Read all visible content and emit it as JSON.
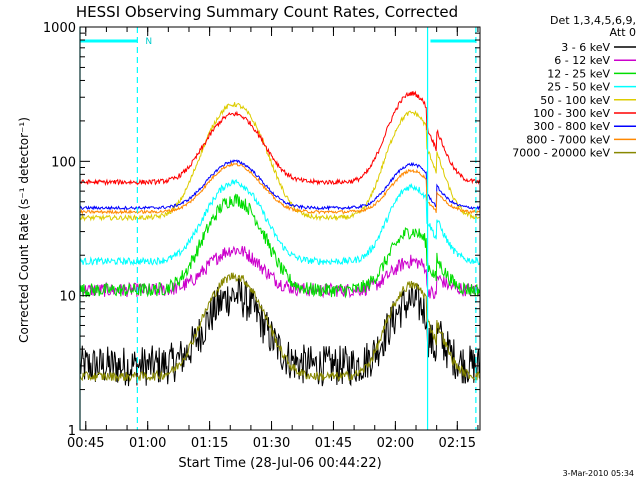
{
  "chart_data": {
    "type": "line",
    "title": "HESSI Observing Summary Count Rates, Corrected",
    "xlabel": "Start Time (28-Jul-06 00:44:22)",
    "ylabel": "Corrected Count Rate (s⁻¹ detector⁻¹)",
    "y_scale": "log",
    "ylim": [
      1,
      1000
    ],
    "xlim_minutes_after_0044": [
      -0.4,
      96.5
    ],
    "x_tick_labels": [
      "00:45",
      "01:00",
      "01:15",
      "01:30",
      "01:45",
      "02:00",
      "02:15"
    ],
    "y_tick_labels": [
      "1",
      "10",
      "100",
      "1000"
    ],
    "legend_header": [
      "Det 1,3,4,5,6,9,",
      "Att 0"
    ],
    "legend_position": "right-outside",
    "footer_date": "3-Mar-2010 05:34",
    "night_marker_label": "N",
    "solid_vertical_lines_minutes": [
      -0.4,
      83.8
    ],
    "dashed_vertical_lines_minutes": [
      13.5,
      95.5
    ],
    "series": [
      {
        "name": "3 - 6 keV",
        "color": "#000000",
        "base": 3.0,
        "peak1": 10,
        "peak2": 9,
        "noise": 0.35
      },
      {
        "name": "6 - 12 keV",
        "color": "#cc00cc",
        "base": 11,
        "peak1": 22,
        "peak2": 18,
        "noise": 0.12
      },
      {
        "name": "12 - 25 keV",
        "color": "#00dd00",
        "base": 11,
        "peak1": 52,
        "peak2": 30,
        "noise": 0.12
      },
      {
        "name": "25 - 50 keV",
        "color": "#00ffff",
        "base": 18,
        "peak1": 70,
        "peak2": 65,
        "noise": 0.06
      },
      {
        "name": "50 - 100 keV",
        "color": "#ddcc00",
        "base": 38,
        "peak1": 265,
        "peak2": 230,
        "noise": 0.04
      },
      {
        "name": "100 - 300 keV",
        "color": "#ff0000",
        "base": 70,
        "peak1": 225,
        "peak2": 320,
        "noise": 0.04
      },
      {
        "name": "300 - 800 keV",
        "color": "#0000ff",
        "base": 45,
        "peak1": 100,
        "peak2": 95,
        "noise": 0.025
      },
      {
        "name": "800 - 7000 keV",
        "color": "#ff8800",
        "base": 42,
        "peak1": 95,
        "peak2": 85,
        "noise": 0.025
      },
      {
        "name": "7000 - 20000 keV",
        "color": "#888800",
        "base": 2.5,
        "peak1": 14,
        "peak2": 12,
        "noise": 0.08
      }
    ]
  }
}
